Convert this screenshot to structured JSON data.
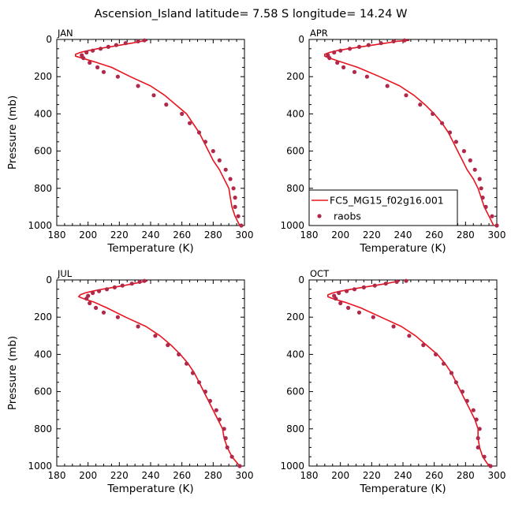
{
  "title": "Ascension_Island   latitude=  7.58 S longitude=  14.24 W",
  "colors": {
    "model": "#e8141e",
    "obs": "#b0284a"
  },
  "legend": {
    "model_label": "FC5_MG15_f02g16.001",
    "obs_label": "raobs"
  },
  "chart_data": [
    {
      "type": "line",
      "panel": "JAN",
      "xlabel": "Temperature (K)",
      "ylabel": "Pressure (mb)",
      "xlim": [
        180,
        300
      ],
      "ylim": [
        1000,
        0
      ],
      "xticks": [
        180,
        200,
        220,
        240,
        260,
        280,
        300
      ],
      "yticks": [
        0,
        200,
        400,
        600,
        800,
        1000
      ],
      "model": [
        [
          297,
          1000
        ],
        [
          294,
          950
        ],
        [
          292,
          900
        ],
        [
          291,
          850
        ],
        [
          290,
          800
        ],
        [
          287,
          750
        ],
        [
          284,
          700
        ],
        [
          280,
          650
        ],
        [
          277,
          600
        ],
        [
          274,
          550
        ],
        [
          271,
          500
        ],
        [
          267,
          450
        ],
        [
          263,
          400
        ],
        [
          256,
          350
        ],
        [
          249,
          300
        ],
        [
          240,
          250
        ],
        [
          227,
          200
        ],
        [
          215,
          150
        ],
        [
          204,
          120
        ],
        [
          196,
          100
        ],
        [
          192,
          90
        ],
        [
          192,
          80
        ],
        [
          195,
          70
        ],
        [
          200,
          60
        ],
        [
          206,
          50
        ],
        [
          214,
          40
        ],
        [
          221,
          30
        ],
        [
          228,
          20
        ],
        [
          234,
          10
        ],
        [
          238,
          5
        ]
      ],
      "obs": [
        [
          298,
          1000
        ],
        [
          296,
          950
        ],
        [
          294,
          900
        ],
        [
          294,
          850
        ],
        [
          293,
          800
        ],
        [
          291,
          750
        ],
        [
          288,
          700
        ],
        [
          284,
          650
        ],
        [
          280,
          600
        ],
        [
          275,
          550
        ],
        [
          271,
          500
        ],
        [
          265,
          450
        ],
        [
          260,
          400
        ],
        [
          250,
          350
        ],
        [
          242,
          300
        ],
        [
          232,
          250
        ],
        [
          219,
          200
        ],
        [
          210,
          175
        ],
        [
          206,
          150
        ],
        [
          201,
          125
        ],
        [
          197,
          100
        ],
        [
          196,
          85
        ],
        [
          199,
          70
        ],
        [
          203,
          60
        ],
        [
          208,
          50
        ],
        [
          213,
          40
        ],
        [
          218,
          30
        ],
        [
          224,
          20
        ],
        [
          232,
          10
        ],
        [
          236,
          5
        ]
      ]
    },
    {
      "type": "line",
      "panel": "APR",
      "xlabel": "Temperature (K)",
      "ylabel": "",
      "xlim": [
        180,
        300
      ],
      "ylim": [
        1000,
        0
      ],
      "xticks": [
        180,
        200,
        220,
        240,
        260,
        280,
        300
      ],
      "yticks": [
        0,
        200,
        400,
        600,
        800,
        1000
      ],
      "model": [
        [
          298,
          1000
        ],
        [
          295,
          950
        ],
        [
          292,
          900
        ],
        [
          290,
          850
        ],
        [
          288,
          800
        ],
        [
          285,
          750
        ],
        [
          281,
          700
        ],
        [
          278,
          650
        ],
        [
          275,
          600
        ],
        [
          272,
          550
        ],
        [
          269,
          500
        ],
        [
          265,
          450
        ],
        [
          260,
          400
        ],
        [
          254,
          350
        ],
        [
          247,
          300
        ],
        [
          238,
          250
        ],
        [
          225,
          200
        ],
        [
          211,
          150
        ],
        [
          200,
          120
        ],
        [
          193,
          100
        ],
        [
          190,
          90
        ],
        [
          190,
          80
        ],
        [
          193,
          70
        ],
        [
          198,
          60
        ],
        [
          205,
          50
        ],
        [
          213,
          40
        ],
        [
          221,
          30
        ],
        [
          229,
          20
        ],
        [
          236,
          10
        ],
        [
          244,
          5
        ]
      ],
      "obs": [
        [
          300,
          1000
        ],
        [
          297,
          950
        ],
        [
          293,
          900
        ],
        [
          291,
          850
        ],
        [
          290,
          800
        ],
        [
          289,
          750
        ],
        [
          286,
          700
        ],
        [
          283,
          650
        ],
        [
          279,
          600
        ],
        [
          274,
          550
        ],
        [
          270,
          500
        ],
        [
          265,
          450
        ],
        [
          259,
          400
        ],
        [
          251,
          350
        ],
        [
          242,
          300
        ],
        [
          230,
          250
        ],
        [
          217,
          200
        ],
        [
          209,
          175
        ],
        [
          202,
          150
        ],
        [
          198,
          125
        ],
        [
          193,
          100
        ],
        [
          192,
          85
        ],
        [
          196,
          70
        ],
        [
          200,
          60
        ],
        [
          206,
          50
        ],
        [
          212,
          40
        ],
        [
          218,
          30
        ],
        [
          226,
          20
        ],
        [
          234,
          10
        ],
        [
          241,
          5
        ]
      ]
    },
    {
      "type": "line",
      "panel": "JUL",
      "xlabel": "Temperature (K)",
      "ylabel": "Pressure (mb)",
      "xlim": [
        180,
        300
      ],
      "ylim": [
        1000,
        0
      ],
      "xticks": [
        180,
        200,
        220,
        240,
        260,
        280,
        300
      ],
      "yticks": [
        0,
        200,
        400,
        600,
        800,
        1000
      ],
      "model": [
        [
          297,
          1000
        ],
        [
          292,
          950
        ],
        [
          289,
          900
        ],
        [
          287,
          850
        ],
        [
          286,
          800
        ],
        [
          283,
          750
        ],
        [
          280,
          700
        ],
        [
          277,
          650
        ],
        [
          274,
          600
        ],
        [
          271,
          550
        ],
        [
          268,
          500
        ],
        [
          264,
          450
        ],
        [
          259,
          400
        ],
        [
          253,
          350
        ],
        [
          246,
          300
        ],
        [
          237,
          250
        ],
        [
          224,
          200
        ],
        [
          212,
          150
        ],
        [
          204,
          120
        ],
        [
          197,
          100
        ],
        [
          194,
          90
        ],
        [
          195,
          80
        ],
        [
          198,
          70
        ],
        [
          203,
          60
        ],
        [
          209,
          50
        ],
        [
          216,
          40
        ],
        [
          223,
          30
        ],
        [
          229,
          20
        ],
        [
          235,
          10
        ],
        [
          238,
          5
        ]
      ],
      "obs": [
        [
          297,
          1000
        ],
        [
          292,
          950
        ],
        [
          289,
          900
        ],
        [
          288,
          850
        ],
        [
          287,
          800
        ],
        [
          284,
          750
        ],
        [
          282,
          700
        ],
        [
          278,
          650
        ],
        [
          275,
          600
        ],
        [
          271,
          550
        ],
        [
          267,
          500
        ],
        [
          263,
          450
        ],
        [
          258,
          400
        ],
        [
          251,
          350
        ],
        [
          243,
          300
        ],
        [
          232,
          250
        ],
        [
          219,
          200
        ],
        [
          210,
          175
        ],
        [
          205,
          150
        ],
        [
          201,
          125
        ],
        [
          199,
          100
        ],
        [
          200,
          85
        ],
        [
          203,
          70
        ],
        [
          207,
          60
        ],
        [
          212,
          50
        ],
        [
          217,
          40
        ],
        [
          222,
          30
        ],
        [
          228,
          20
        ],
        [
          233,
          10
        ],
        [
          236,
          5
        ]
      ]
    },
    {
      "type": "line",
      "panel": "OCT",
      "xlabel": "Temperature (K)",
      "ylabel": "",
      "xlim": [
        180,
        300
      ],
      "ylim": [
        1000,
        0
      ],
      "xticks": [
        180,
        200,
        220,
        240,
        260,
        280,
        300
      ],
      "yticks": [
        0,
        200,
        400,
        600,
        800,
        1000
      ],
      "model": [
        [
          295,
          1000
        ],
        [
          291,
          950
        ],
        [
          289,
          900
        ],
        [
          288,
          850
        ],
        [
          288,
          800
        ],
        [
          286,
          750
        ],
        [
          283,
          700
        ],
        [
          280,
          650
        ],
        [
          277,
          600
        ],
        [
          274,
          550
        ],
        [
          271,
          500
        ],
        [
          267,
          450
        ],
        [
          262,
          400
        ],
        [
          255,
          350
        ],
        [
          248,
          300
        ],
        [
          239,
          250
        ],
        [
          226,
          200
        ],
        [
          213,
          150
        ],
        [
          203,
          120
        ],
        [
          195,
          100
        ],
        [
          192,
          90
        ],
        [
          192,
          80
        ],
        [
          195,
          70
        ],
        [
          200,
          60
        ],
        [
          207,
          50
        ],
        [
          214,
          40
        ],
        [
          222,
          30
        ],
        [
          229,
          20
        ],
        [
          235,
          10
        ],
        [
          238,
          5
        ]
      ],
      "obs": [
        [
          296,
          1000
        ],
        [
          292,
          950
        ],
        [
          288,
          900
        ],
        [
          288,
          850
        ],
        [
          289,
          800
        ],
        [
          287,
          750
        ],
        [
          285,
          700
        ],
        [
          281,
          650
        ],
        [
          278,
          600
        ],
        [
          274,
          550
        ],
        [
          271,
          500
        ],
        [
          266,
          450
        ],
        [
          261,
          400
        ],
        [
          253,
          350
        ],
        [
          244,
          300
        ],
        [
          234,
          250
        ],
        [
          221,
          200
        ],
        [
          212,
          175
        ],
        [
          205,
          150
        ],
        [
          200,
          125
        ],
        [
          197,
          100
        ],
        [
          196,
          85
        ],
        [
          199,
          70
        ],
        [
          204,
          60
        ],
        [
          209,
          50
        ],
        [
          215,
          40
        ],
        [
          222,
          30
        ],
        [
          229,
          20
        ],
        [
          236,
          10
        ],
        [
          242,
          5
        ]
      ]
    }
  ]
}
